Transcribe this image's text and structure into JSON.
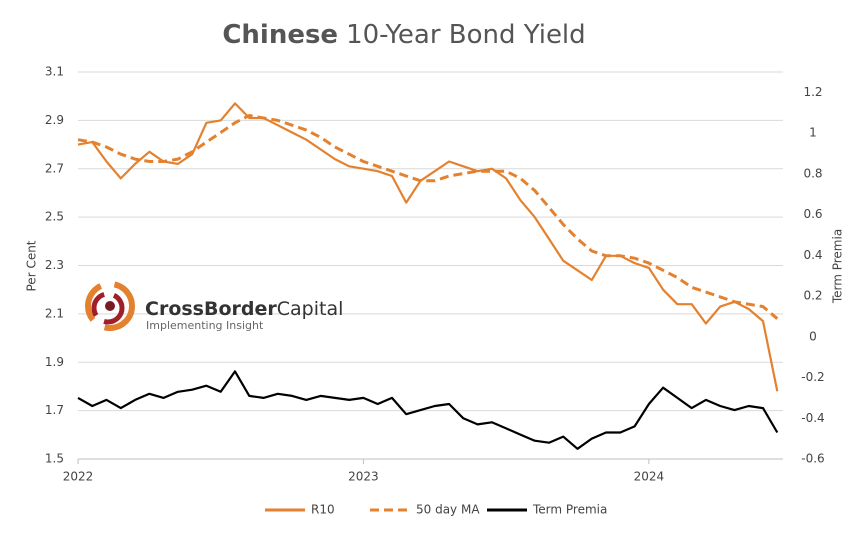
{
  "chart_data": {
    "type": "line",
    "title_bold": "Chinese",
    "title": "10-Year Bond Yield",
    "ylabel": "Per Cent",
    "y2label": "Term Premia",
    "x": [
      2022,
      2022.05,
      2022.1,
      2022.15,
      2022.2,
      2022.25,
      2022.3,
      2022.35,
      2022.4,
      2022.45,
      2022.5,
      2022.55,
      2022.6,
      2022.65,
      2022.7,
      2022.75,
      2022.8,
      2022.85,
      2022.9,
      2022.95,
      2023,
      2023.05,
      2023.1,
      2023.15,
      2023.2,
      2023.25,
      2023.3,
      2023.35,
      2023.4,
      2023.45,
      2023.5,
      2023.55,
      2023.6,
      2023.65,
      2023.7,
      2023.75,
      2023.8,
      2023.85,
      2023.9,
      2023.95,
      2024,
      2024.05,
      2024.1,
      2024.15,
      2024.2,
      2024.25,
      2024.3,
      2024.35,
      2024.4,
      2024.45
    ],
    "series": [
      {
        "name": "R10",
        "color": "#e4812f",
        "style": "solid",
        "axis": "y",
        "values": [
          2.8,
          2.81,
          2.73,
          2.66,
          2.72,
          2.77,
          2.73,
          2.72,
          2.76,
          2.89,
          2.9,
          2.97,
          2.91,
          2.91,
          2.88,
          2.85,
          2.82,
          2.78,
          2.74,
          2.71,
          2.7,
          2.69,
          2.67,
          2.56,
          2.65,
          2.69,
          2.73,
          2.71,
          2.69,
          2.7,
          2.66,
          2.57,
          2.5,
          2.41,
          2.32,
          2.28,
          2.24,
          2.34,
          2.34,
          2.31,
          2.29,
          2.2,
          2.14,
          2.14,
          2.06,
          2.13,
          2.15,
          2.12,
          2.07,
          1.78
        ]
      },
      {
        "name": "50 day MA",
        "color": "#e4812f",
        "style": "dashed",
        "axis": "y",
        "values": [
          2.82,
          2.81,
          2.79,
          2.76,
          2.74,
          2.73,
          2.73,
          2.74,
          2.77,
          2.81,
          2.85,
          2.89,
          2.92,
          2.91,
          2.9,
          2.88,
          2.86,
          2.83,
          2.79,
          2.76,
          2.73,
          2.71,
          2.69,
          2.67,
          2.65,
          2.65,
          2.67,
          2.68,
          2.69,
          2.69,
          2.69,
          2.66,
          2.61,
          2.54,
          2.47,
          2.41,
          2.36,
          2.34,
          2.34,
          2.33,
          2.31,
          2.28,
          2.25,
          2.21,
          2.19,
          2.17,
          2.15,
          2.14,
          2.13,
          2.08
        ]
      },
      {
        "name": "Term Premia",
        "color": "#000000",
        "style": "solid",
        "axis": "y2",
        "values": [
          -0.3,
          -0.34,
          -0.31,
          -0.35,
          -0.31,
          -0.28,
          -0.3,
          -0.27,
          -0.26,
          -0.24,
          -0.27,
          -0.17,
          -0.29,
          -0.3,
          -0.28,
          -0.29,
          -0.31,
          -0.29,
          -0.3,
          -0.31,
          -0.3,
          -0.33,
          -0.3,
          -0.38,
          -0.36,
          -0.34,
          -0.33,
          -0.4,
          -0.43,
          -0.42,
          -0.45,
          -0.48,
          -0.51,
          -0.52,
          -0.49,
          -0.55,
          -0.5,
          -0.47,
          -0.47,
          -0.44,
          -0.33,
          -0.25,
          -0.3,
          -0.35,
          -0.31,
          -0.34,
          -0.36,
          -0.34,
          -0.35,
          -0.47
        ]
      }
    ],
    "xlim": [
      2022,
      2024.47
    ],
    "xticks": [
      2022,
      2023,
      2024
    ],
    "ylim": [
      1.5,
      3.1
    ],
    "yticks": [
      1.5,
      1.7,
      1.9,
      2.1,
      2.3,
      2.5,
      2.7,
      2.9,
      3.1
    ],
    "y2lim": [
      -0.6,
      1.3
    ],
    "y2ticks": [
      -0.6,
      -0.4,
      -0.2,
      0,
      0.2,
      0.4,
      0.6,
      0.8,
      1,
      1.2
    ],
    "grid": true,
    "legend": "bottom"
  },
  "logo": {
    "name_bold": "CrossBorder",
    "name": "Capital",
    "tagline": "Implementing Insight"
  }
}
